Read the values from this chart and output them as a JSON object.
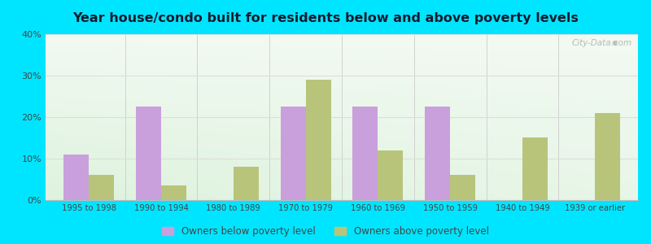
{
  "title": "Year house/condo built for residents below and above poverty levels",
  "categories": [
    "1995 to 1998",
    "1990 to 1994",
    "1980 to 1989",
    "1970 to 1979",
    "1960 to 1969",
    "1950 to 1959",
    "1940 to 1949",
    "1939 or earlier"
  ],
  "below_poverty": [
    11,
    22.5,
    0,
    22.5,
    22.5,
    22.5,
    0,
    0
  ],
  "above_poverty": [
    6,
    3.5,
    8,
    29,
    12,
    6,
    15,
    21
  ],
  "below_color": "#c9a0dc",
  "above_color": "#b8c47a",
  "ylim": [
    0,
    40
  ],
  "yticks": [
    0,
    10,
    20,
    30,
    40
  ],
  "ytick_labels": [
    "0%",
    "10%",
    "20%",
    "30%",
    "40%"
  ],
  "outer_bg": "#00e5ff",
  "bar_width": 0.35,
  "legend_below": "Owners below poverty level",
  "legend_above": "Owners above poverty level",
  "watermark": "City-Data.com",
  "title_color": "#1a1a2e",
  "grid_color": "#dddddd",
  "separator_color": "#cccccc"
}
